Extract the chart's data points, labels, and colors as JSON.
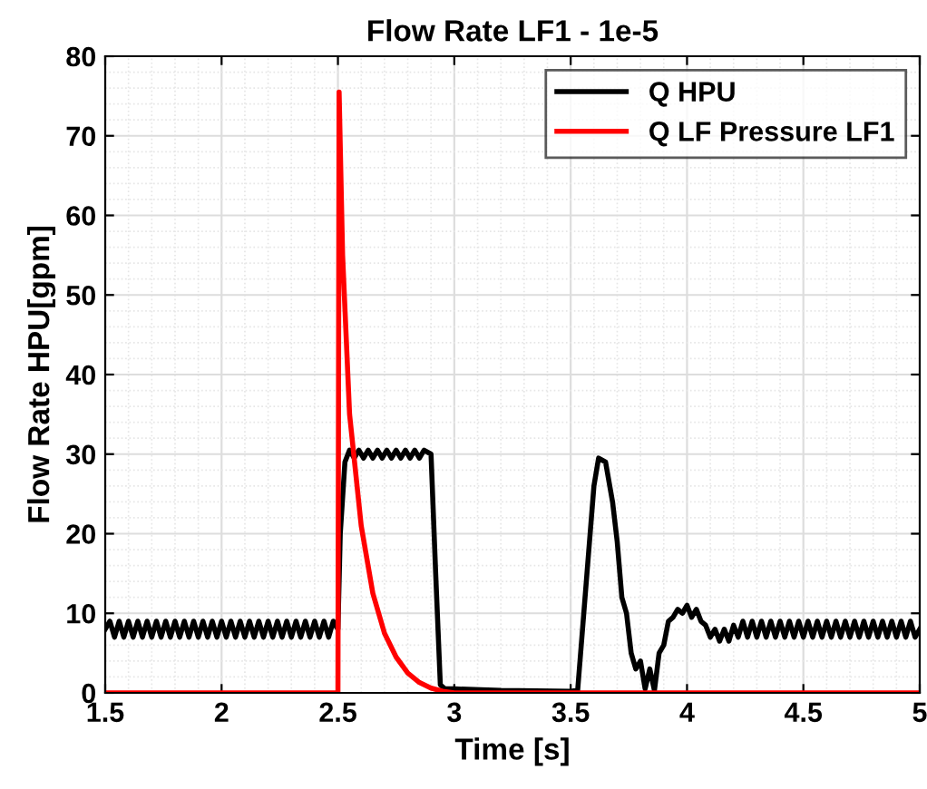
{
  "chart_data": {
    "type": "line",
    "title": "Flow Rate LF1 - 1e-5",
    "xlabel": "Time [s]",
    "ylabel": "Flow Rate HPU[gpm]",
    "xlim": [
      1.5,
      5
    ],
    "xticks": [
      1.5,
      2,
      2.5,
      3,
      3.5,
      4,
      4.5,
      5
    ],
    "ylim": [
      0,
      80
    ],
    "yticks": [
      0,
      10,
      20,
      30,
      40,
      50,
      60,
      70,
      80
    ],
    "grid": true,
    "legend": "top right",
    "marker": "none",
    "line_style": "solid",
    "series": [
      {
        "name": "Q HPU",
        "color": "#000000",
        "x": [
          1.5,
          1.52,
          1.54,
          1.56,
          1.58,
          1.6,
          1.62,
          1.64,
          1.66,
          1.68,
          1.7,
          1.72,
          1.74,
          1.76,
          1.78,
          1.8,
          1.82,
          1.84,
          1.86,
          1.88,
          1.9,
          1.92,
          1.94,
          1.96,
          1.98,
          2.0,
          2.02,
          2.04,
          2.06,
          2.08,
          2.1,
          2.12,
          2.14,
          2.16,
          2.18,
          2.2,
          2.22,
          2.24,
          2.26,
          2.28,
          2.3,
          2.32,
          2.34,
          2.36,
          2.38,
          2.4,
          2.42,
          2.44,
          2.46,
          2.48,
          2.5,
          2.51,
          2.53,
          2.55,
          2.57,
          2.59,
          2.61,
          2.63,
          2.65,
          2.67,
          2.69,
          2.71,
          2.73,
          2.75,
          2.77,
          2.79,
          2.81,
          2.83,
          2.85,
          2.87,
          2.9,
          2.92,
          2.94,
          2.96,
          3.0,
          3.2,
          3.5,
          3.53,
          3.57,
          3.6,
          3.62,
          3.65,
          3.68,
          3.7,
          3.72,
          3.74,
          3.76,
          3.78,
          3.8,
          3.82,
          3.84,
          3.86,
          3.88,
          3.9,
          3.92,
          3.94,
          3.96,
          3.98,
          4.0,
          4.02,
          4.04,
          4.06,
          4.08,
          4.1,
          4.12,
          4.14,
          4.16,
          4.18,
          4.2,
          4.22,
          4.24,
          4.26,
          4.28,
          4.3,
          4.32,
          4.34,
          4.36,
          4.38,
          4.4,
          4.42,
          4.44,
          4.46,
          4.48,
          4.5,
          4.52,
          4.54,
          4.56,
          4.58,
          4.6,
          4.62,
          4.64,
          4.66,
          4.68,
          4.7,
          4.72,
          4.74,
          4.76,
          4.78,
          4.8,
          4.82,
          4.84,
          4.86,
          4.88,
          4.9,
          4.92,
          4.94,
          4.96,
          4.98,
          5.0
        ],
        "values": [
          8,
          9,
          7,
          9,
          7,
          9,
          7,
          9,
          7,
          9,
          7,
          9,
          7,
          9,
          7,
          9,
          7,
          9,
          7,
          9,
          7,
          9,
          7,
          9,
          7,
          9,
          7,
          9,
          7,
          9,
          7,
          9,
          7,
          9,
          7,
          9,
          7,
          9,
          7,
          9,
          7,
          9,
          7,
          9,
          7,
          9,
          7,
          9,
          7,
          9,
          8,
          20,
          29,
          30.5,
          29.5,
          30.5,
          29.5,
          30.5,
          29.5,
          30.5,
          29.5,
          30.5,
          29.5,
          30.5,
          29.5,
          30.5,
          29.5,
          30.5,
          29.5,
          30.5,
          30,
          15,
          1,
          0.5,
          0.5,
          0.3,
          0.2,
          0.3,
          15,
          26,
          29.5,
          29,
          24,
          19,
          12,
          10,
          5,
          3,
          4,
          0.5,
          3,
          0.3,
          5,
          6,
          9,
          9.5,
          10.5,
          10,
          11,
          9.5,
          10.5,
          9,
          8.5,
          7,
          8,
          6.5,
          8,
          6.5,
          8.5,
          7,
          9,
          7,
          9,
          7,
          9,
          7,
          9,
          7,
          9,
          7,
          9,
          7,
          9,
          7,
          9,
          7,
          9,
          7,
          9,
          7,
          9,
          7,
          9,
          7,
          9,
          7,
          9,
          7,
          9,
          7,
          9,
          7,
          9,
          7,
          9,
          7,
          9,
          7,
          8
        ]
      },
      {
        "name": "Q LF Pressure LF1",
        "color": "#ff0000",
        "x": [
          1.5,
          2.5,
          2.505,
          2.52,
          2.55,
          2.6,
          2.65,
          2.7,
          2.75,
          2.8,
          2.85,
          2.9,
          2.95,
          3.0,
          5.0
        ],
        "values": [
          0,
          0,
          75.5,
          55,
          35,
          21,
          12.5,
          7.5,
          4.5,
          2.5,
          1.3,
          0.6,
          0.2,
          0,
          0
        ]
      }
    ]
  }
}
